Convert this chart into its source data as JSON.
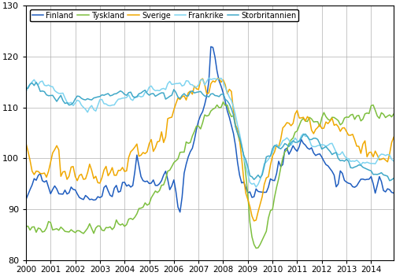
{
  "legend_labels": [
    "Finland",
    "Tyskland",
    "Sverige",
    "Frankrike",
    "Storbritannien"
  ],
  "colors": [
    "#1f5dbf",
    "#7dbf3f",
    "#f0a800",
    "#7fd4f0",
    "#40a8c8"
  ],
  "ylim": [
    80,
    130
  ],
  "yticks": [
    80,
    90,
    100,
    110,
    120,
    130
  ],
  "xlim_start": 2000.0,
  "xlim_end": 2014.92,
  "xtick_years": [
    2000,
    2001,
    2002,
    2003,
    2004,
    2005,
    2006,
    2007,
    2008,
    2009,
    2010,
    2011,
    2012,
    2013,
    2014
  ],
  "grid_color": "#b0b0b0",
  "background_color": "#ffffff",
  "linewidth": 1.1
}
